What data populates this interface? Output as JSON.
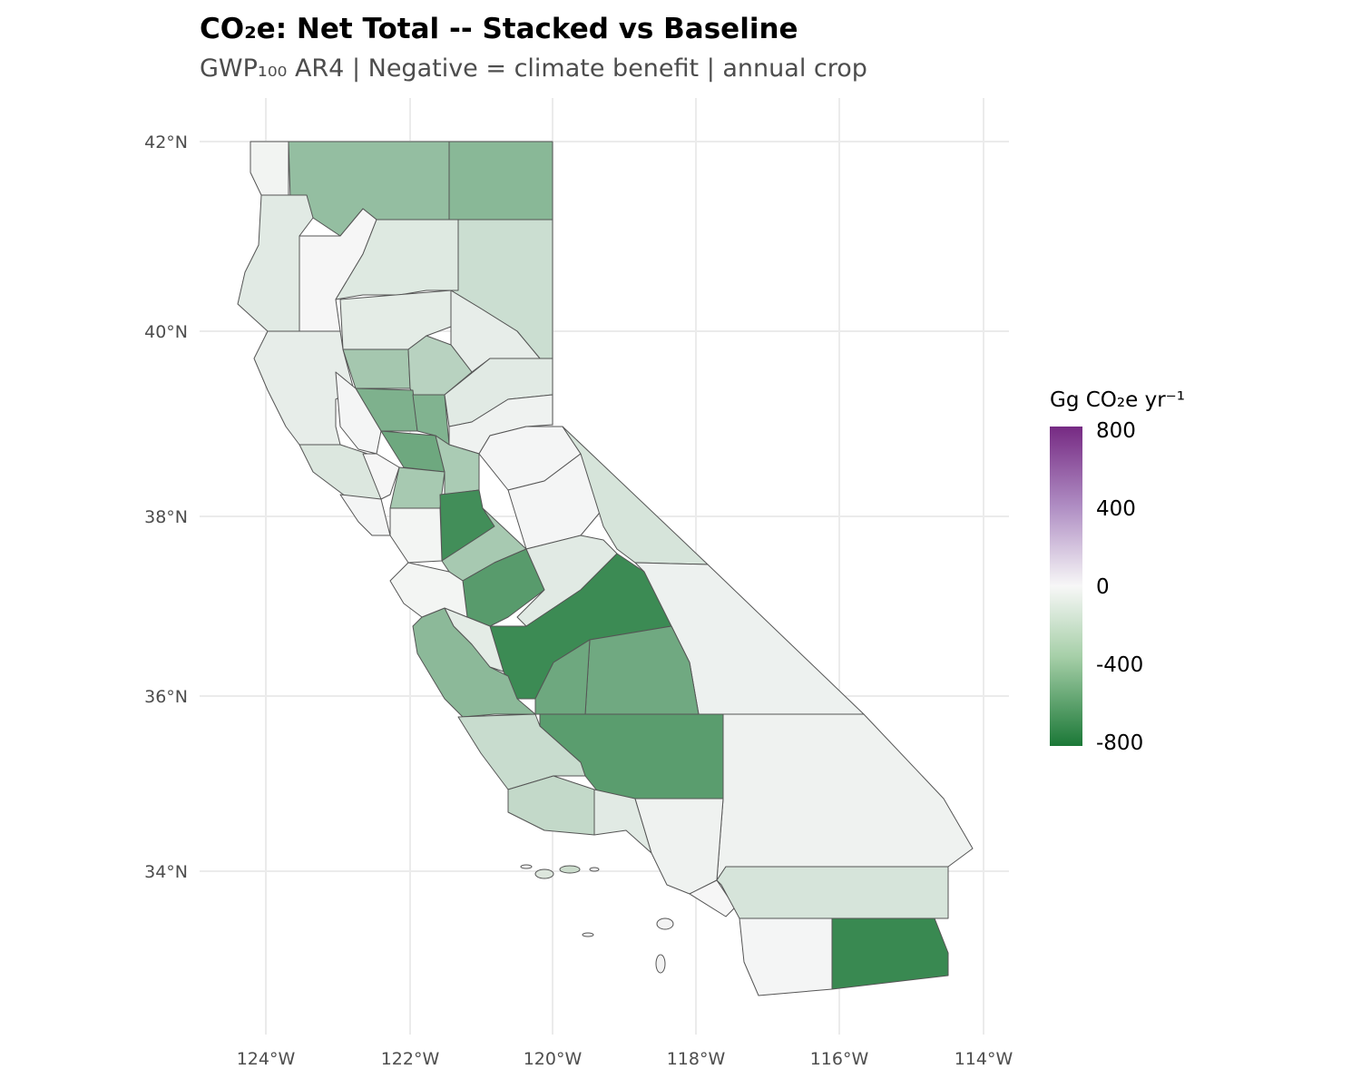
{
  "title": "CO₂e: Net Total -- Stacked vs Baseline",
  "subtitle": "GWP₁₀₀ AR4 | Negative = climate benefit | annual crop",
  "axes": {
    "lat_labels": [
      "42°N",
      "40°N",
      "38°N",
      "36°N",
      "34°N"
    ],
    "lon_labels": [
      "124°W",
      "122°W",
      "120°W",
      "118°W",
      "116°W",
      "114°W"
    ]
  },
  "legend": {
    "title": "Gg CO₂e yr⁻¹",
    "ticks": [
      "800",
      "400",
      "0",
      "-400",
      "-800"
    ],
    "range": [
      -800,
      800
    ],
    "colors": {
      "low": "#1b7837",
      "mid": "#f7f7f7",
      "high": "#762a83"
    }
  },
  "regions": [
    {
      "value": -360
    },
    {
      "value": -400
    },
    {
      "value": -20
    },
    {
      "value": -80
    },
    {
      "value": -5
    },
    {
      "value": -90
    },
    {
      "value": -160
    },
    {
      "value": -70
    },
    {
      "value": -60
    },
    {
      "value": -60
    },
    {
      "value": -300
    },
    {
      "value": -230
    },
    {
      "value": -440
    },
    {
      "value": -10
    },
    {
      "value": -430
    },
    {
      "value": -500
    },
    {
      "value": -100
    },
    {
      "value": -5
    },
    {
      "value": -290
    },
    {
      "value": -80
    },
    {
      "value": -30
    },
    {
      "value": -280
    },
    {
      "value": -10
    },
    {
      "value": -660
    },
    {
      "value": -10
    },
    {
      "value": -15
    },
    {
      "value": -290
    },
    {
      "value": -10
    },
    {
      "value": -120
    },
    {
      "value": -580
    },
    {
      "value": -80
    },
    {
      "value": -680
    },
    {
      "value": -35
    },
    {
      "value": -490
    },
    {
      "value": -500
    },
    {
      "value": -390
    },
    {
      "value": -70
    },
    {
      "value": -15
    },
    {
      "value": -170
    },
    {
      "value": -570
    },
    {
      "value": -30
    },
    {
      "value": -190
    },
    {
      "value": -80
    },
    {
      "value": -30
    },
    {
      "value": -5
    },
    {
      "value": -120
    },
    {
      "value": -10
    },
    {
      "value": -690
    }
  ]
}
